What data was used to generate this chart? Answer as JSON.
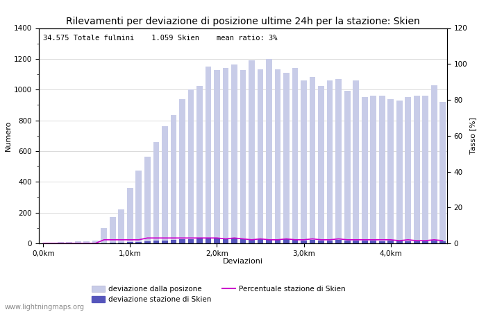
{
  "title": "Rilevamenti per deviazione di posizione ultime 24h per la stazione: Skien",
  "subtitle": "34.575 Totale fulmini    1.059 Skien    mean ratio: 3%",
  "xlabel": "Deviazioni",
  "ylabel_left": "Numero",
  "ylabel_right": "Tasso [%]",
  "watermark": "www.lightningmaps.org",
  "xtick_labels": [
    "0,0km",
    "1,0km",
    "2,0km",
    "3,0km",
    "4,0km"
  ],
  "xtick_positions": [
    0,
    10,
    20,
    30,
    40
  ],
  "ylim_left": [
    0,
    1400
  ],
  "ylim_right": [
    0,
    120
  ],
  "yticks_left": [
    0,
    200,
    400,
    600,
    800,
    1000,
    1200,
    1400
  ],
  "yticks_right": [
    0,
    20,
    40,
    60,
    80,
    100,
    120
  ],
  "bar_positions": [
    0,
    1,
    2,
    3,
    4,
    5,
    6,
    7,
    8,
    9,
    10,
    11,
    12,
    13,
    14,
    15,
    16,
    17,
    18,
    19,
    20,
    21,
    22,
    23,
    24,
    25,
    26,
    27,
    28,
    29,
    30,
    31,
    32,
    33,
    34,
    35,
    36,
    37,
    38,
    39,
    40,
    41,
    42,
    43,
    44,
    45,
    46
  ],
  "total_bars": [
    2,
    5,
    8,
    10,
    12,
    15,
    18,
    100,
    170,
    220,
    360,
    475,
    565,
    660,
    760,
    835,
    940,
    1000,
    1025,
    1150,
    1125,
    1140,
    1165,
    1125,
    1190,
    1130,
    1200,
    1130,
    1110,
    1140,
    1060,
    1080,
    1025,
    1060,
    1070,
    990,
    1060,
    950,
    960,
    960,
    940,
    930,
    950,
    960,
    960,
    1030,
    920
  ],
  "station_bars": [
    0,
    0,
    0,
    0,
    0,
    0,
    1,
    2,
    3,
    5,
    8,
    10,
    15,
    18,
    20,
    22,
    25,
    28,
    30,
    32,
    30,
    28,
    32,
    30,
    25,
    28,
    25,
    22,
    25,
    22,
    20,
    22,
    18,
    20,
    22,
    18,
    20,
    18,
    18,
    15,
    18,
    16,
    15,
    14,
    15,
    16,
    14
  ],
  "magenta_line": [
    0,
    0,
    0,
    0,
    0,
    0,
    0,
    2,
    2,
    2,
    2,
    2,
    3,
    3,
    3,
    3,
    3,
    3,
    3,
    3,
    3,
    2.5,
    3,
    2.5,
    2,
    2.5,
    2,
    2,
    2.5,
    2,
    2,
    2.5,
    2,
    2,
    2.5,
    2,
    2,
    2,
    2,
    2,
    2,
    1.5,
    2,
    1.5,
    1.5,
    2,
    1.5
  ],
  "bar_color_light": "#c8cce8",
  "bar_color_dark": "#5555bb",
  "line_color": "#cc00cc",
  "bg_color": "#ffffff",
  "grid_color": "#cccccc",
  "title_fontsize": 10,
  "label_fontsize": 8,
  "tick_fontsize": 7.5,
  "subtitle_fontsize": 7.5,
  "watermark_fontsize": 7
}
